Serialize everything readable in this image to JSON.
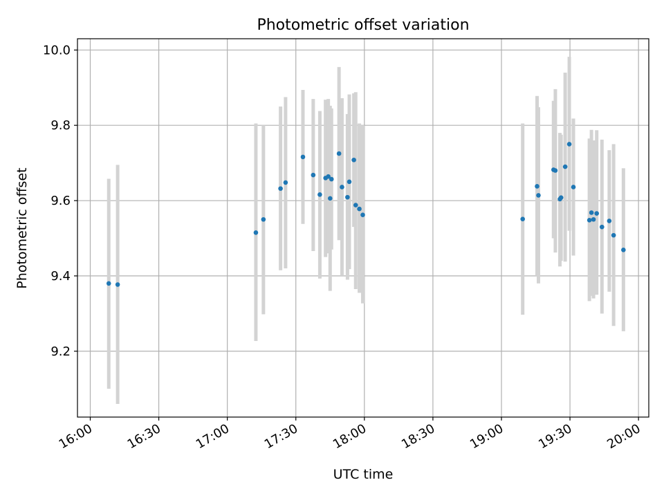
{
  "chart_data": {
    "type": "scatter",
    "title": "Photometric offset variation",
    "xlabel": "UTC time",
    "ylabel": "Photometric offset",
    "x_unit": "minutes since 16:00 UTC",
    "xlim": [
      -5.6,
      244.5
    ],
    "ylim": [
      9.025,
      10.03
    ],
    "x_ticks": [
      {
        "value": 0,
        "label": "16:00"
      },
      {
        "value": 30,
        "label": "16:30"
      },
      {
        "value": 60,
        "label": "17:00"
      },
      {
        "value": 90,
        "label": "17:30"
      },
      {
        "value": 120,
        "label": "18:00"
      },
      {
        "value": 150,
        "label": "18:30"
      },
      {
        "value": 180,
        "label": "19:00"
      },
      {
        "value": 210,
        "label": "19:30"
      },
      {
        "value": 240,
        "label": "20:00"
      }
    ],
    "y_ticks": [
      {
        "value": 9.2,
        "label": "9.2"
      },
      {
        "value": 9.4,
        "label": "9.4"
      },
      {
        "value": 9.6,
        "label": "9.6"
      },
      {
        "value": 9.8,
        "label": "9.8"
      },
      {
        "value": 10.0,
        "label": "10.0"
      }
    ],
    "grid": true,
    "colors": {
      "point": "#1f77b4",
      "errorbar": "#d3d3d3"
    },
    "series": [
      {
        "points": [
          {
            "x": 8.1,
            "y": 9.38,
            "err_lo": 9.1,
            "err_hi": 9.658
          },
          {
            "x": 12.0,
            "y": 9.377,
            "err_lo": 9.06,
            "err_hi": 9.695
          },
          {
            "x": 72.5,
            "y": 9.515,
            "err_lo": 9.227,
            "err_hi": 9.805
          },
          {
            "x": 75.8,
            "y": 9.55,
            "err_lo": 9.298,
            "err_hi": 9.8
          },
          {
            "x": 83.3,
            "y": 9.632,
            "err_lo": 9.415,
            "err_hi": 9.85
          },
          {
            "x": 85.5,
            "y": 9.648,
            "err_lo": 9.42,
            "err_hi": 9.875
          },
          {
            "x": 93.1,
            "y": 9.716,
            "err_lo": 9.538,
            "err_hi": 9.894
          },
          {
            "x": 97.6,
            "y": 9.668,
            "err_lo": 9.466,
            "err_hi": 9.87
          },
          {
            "x": 100.5,
            "y": 9.616,
            "err_lo": 9.393,
            "err_hi": 9.838
          },
          {
            "x": 103.0,
            "y": 9.66,
            "err_lo": 9.45,
            "err_hi": 9.868
          },
          {
            "x": 104.2,
            "y": 9.664,
            "err_lo": 9.46,
            "err_hi": 9.87
          },
          {
            "x": 105.0,
            "y": 9.606,
            "err_lo": 9.36,
            "err_hi": 9.852
          },
          {
            "x": 105.6,
            "y": 9.657,
            "err_lo": 9.47,
            "err_hi": 9.845
          },
          {
            "x": 108.9,
            "y": 9.725,
            "err_lo": 9.495,
            "err_hi": 9.955
          },
          {
            "x": 110.2,
            "y": 9.636,
            "err_lo": 9.4,
            "err_hi": 9.872
          },
          {
            "x": 112.6,
            "y": 9.609,
            "err_lo": 9.39,
            "err_hi": 9.83
          },
          {
            "x": 113.4,
            "y": 9.65,
            "err_lo": 9.418,
            "err_hi": 9.882
          },
          {
            "x": 115.4,
            "y": 9.708,
            "err_lo": 9.53,
            "err_hi": 9.885
          },
          {
            "x": 116.2,
            "y": 9.588,
            "err_lo": 9.365,
            "err_hi": 9.888
          },
          {
            "x": 117.8,
            "y": 9.578,
            "err_lo": 9.355,
            "err_hi": 9.805
          },
          {
            "x": 119.3,
            "y": 9.562,
            "err_lo": 9.327,
            "err_hi": 9.8
          },
          {
            "x": 189.3,
            "y": 9.551,
            "err_lo": 9.297,
            "err_hi": 9.805
          },
          {
            "x": 195.6,
            "y": 9.638,
            "err_lo": 9.4,
            "err_hi": 9.878
          },
          {
            "x": 196.2,
            "y": 9.614,
            "err_lo": 9.38,
            "err_hi": 9.848
          },
          {
            "x": 202.8,
            "y": 9.682,
            "err_lo": 9.5,
            "err_hi": 9.865
          },
          {
            "x": 203.6,
            "y": 9.68,
            "err_lo": 9.462,
            "err_hi": 9.896
          },
          {
            "x": 205.6,
            "y": 9.604,
            "err_lo": 9.425,
            "err_hi": 9.78
          },
          {
            "x": 206.1,
            "y": 9.608,
            "err_lo": 9.44,
            "err_hi": 9.775
          },
          {
            "x": 207.9,
            "y": 9.69,
            "err_lo": 9.438,
            "err_hi": 9.94
          },
          {
            "x": 209.7,
            "y": 9.75,
            "err_lo": 9.52,
            "err_hi": 9.982
          },
          {
            "x": 211.5,
            "y": 9.636,
            "err_lo": 9.454,
            "err_hi": 9.818
          },
          {
            "x": 218.5,
            "y": 9.548,
            "err_lo": 9.333,
            "err_hi": 9.765
          },
          {
            "x": 219.4,
            "y": 9.568,
            "err_lo": 9.347,
            "err_hi": 9.788
          },
          {
            "x": 220.3,
            "y": 9.55,
            "err_lo": 9.34,
            "err_hi": 9.76
          },
          {
            "x": 221.7,
            "y": 9.566,
            "err_lo": 9.35,
            "err_hi": 9.787
          },
          {
            "x": 224.0,
            "y": 9.53,
            "err_lo": 9.3,
            "err_hi": 9.762
          },
          {
            "x": 227.2,
            "y": 9.546,
            "err_lo": 9.358,
            "err_hi": 9.734
          },
          {
            "x": 229.1,
            "y": 9.508,
            "err_lo": 9.267,
            "err_hi": 9.75
          },
          {
            "x": 233.4,
            "y": 9.469,
            "err_lo": 9.253,
            "err_hi": 9.686
          }
        ]
      }
    ]
  }
}
